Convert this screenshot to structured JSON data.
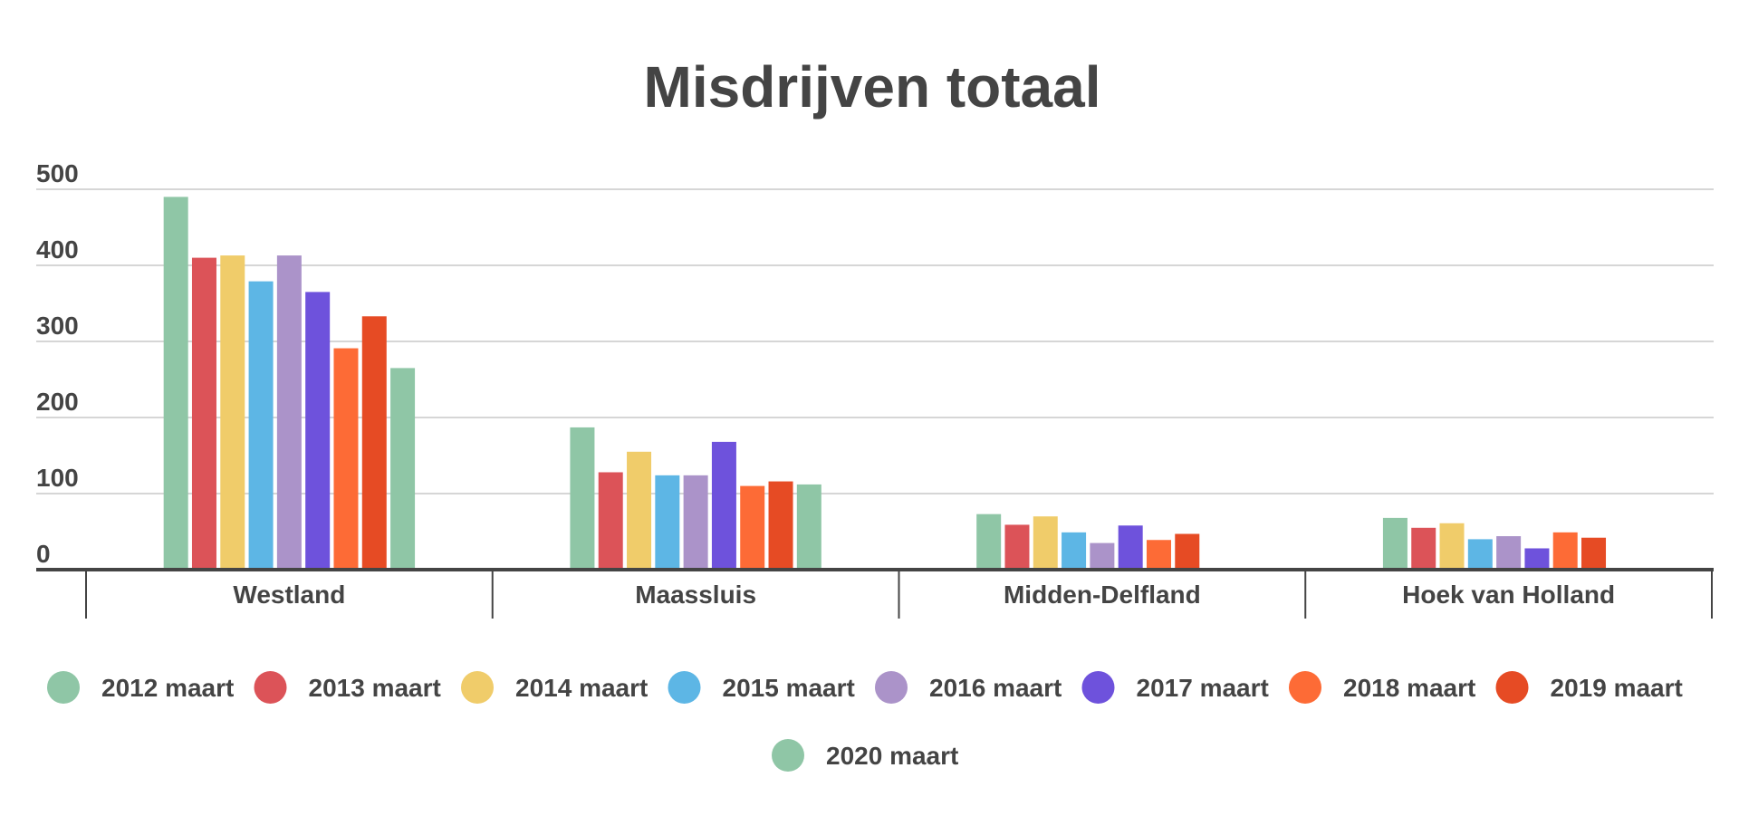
{
  "chart_data": {
    "type": "bar",
    "title": "Misdrijven totaal",
    "xlabel": "",
    "ylabel": "",
    "ylim": [
      0,
      500
    ],
    "yticks": [
      0,
      100,
      200,
      300,
      400,
      500
    ],
    "grid": true,
    "legend_position": "bottom",
    "categories": [
      "Westland",
      "Maassluis",
      "Midden-Delfland",
      "Hoek van Holland"
    ],
    "series": [
      {
        "name": "2012 maart",
        "color": "#8fc6a6",
        "values": [
          490,
          187,
          73,
          68
        ]
      },
      {
        "name": "2013 maart",
        "color": "#dc5358",
        "values": [
          410,
          128,
          59,
          55
        ]
      },
      {
        "name": "2014 maart",
        "color": "#f0cc6a",
        "values": [
          413,
          155,
          70,
          61
        ]
      },
      {
        "name": "2015 maart",
        "color": "#5db6e5",
        "values": [
          379,
          124,
          49,
          40
        ]
      },
      {
        "name": "2016 maart",
        "color": "#ab93c9",
        "values": [
          413,
          124,
          35,
          44
        ]
      },
      {
        "name": "2017 maart",
        "color": "#6e52dc",
        "values": [
          365,
          168,
          58,
          28
        ]
      },
      {
        "name": "2018 maart",
        "color": "#fd6b36",
        "values": [
          291,
          110,
          39,
          49
        ]
      },
      {
        "name": "2019 maart",
        "color": "#e64b24",
        "values": [
          333,
          116,
          47,
          42
        ]
      },
      {
        "name": "2020 maart",
        "color": "#8fc6a6",
        "values": [
          265,
          112,
          null,
          null
        ]
      }
    ]
  }
}
